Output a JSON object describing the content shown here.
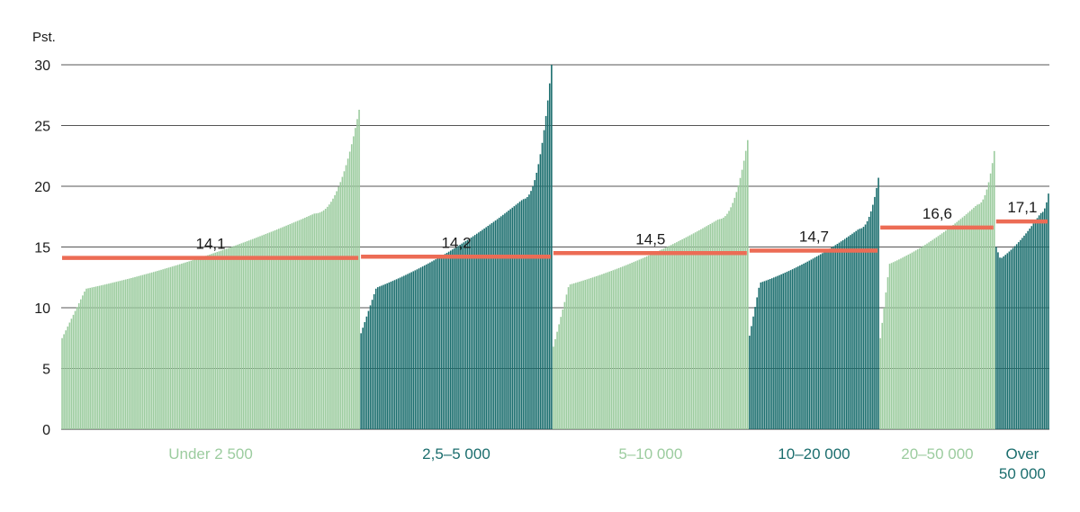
{
  "chart_data": {
    "type": "bar",
    "ylabel": "Pst.",
    "ylim": [
      0,
      30
    ],
    "yticks": [
      0,
      5,
      10,
      15,
      20,
      25,
      30
    ],
    "grid": true,
    "colors": {
      "light": "#9ccc9f",
      "dark": "#1b6e6e",
      "average": "#ec6c55",
      "grid": "#555555"
    },
    "groups": [
      {
        "name": "Under 2 500",
        "label_lines": [
          "Under 2 500"
        ],
        "shade": "light",
        "average": 14.1,
        "average_label": "14,1",
        "count": 160,
        "min": 7.5,
        "max": 26.3
      },
      {
        "name": "2,5–5 000",
        "label_lines": [
          "2,5–5 000"
        ],
        "shade": "dark",
        "average": 14.2,
        "average_label": "14,2",
        "count": 103,
        "min": 7.9,
        "max": 30.0
      },
      {
        "name": "5–10 000",
        "label_lines": [
          "5–10 000"
        ],
        "shade": "light",
        "average": 14.5,
        "average_label": "14,5",
        "count": 105,
        "min": 6.8,
        "max": 23.8
      },
      {
        "name": "10–20 000",
        "label_lines": [
          "10–20 000"
        ],
        "shade": "dark",
        "average": 14.7,
        "average_label": "14,7",
        "count": 70,
        "min": 7.7,
        "max": 20.7
      },
      {
        "name": "20–50 000",
        "label_lines": [
          "20–50 000"
        ],
        "shade": "light",
        "average": 16.6,
        "average_label": "16,6",
        "count": 62,
        "min": 7.5,
        "max": 22.9
      },
      {
        "name": "Over 50 000",
        "label_lines": [
          "Over",
          "50 000"
        ],
        "shade": "dark",
        "average": 17.1,
        "average_label": "17,1",
        "count": 29,
        "min": 15.0,
        "max": 19.4
      }
    ]
  }
}
